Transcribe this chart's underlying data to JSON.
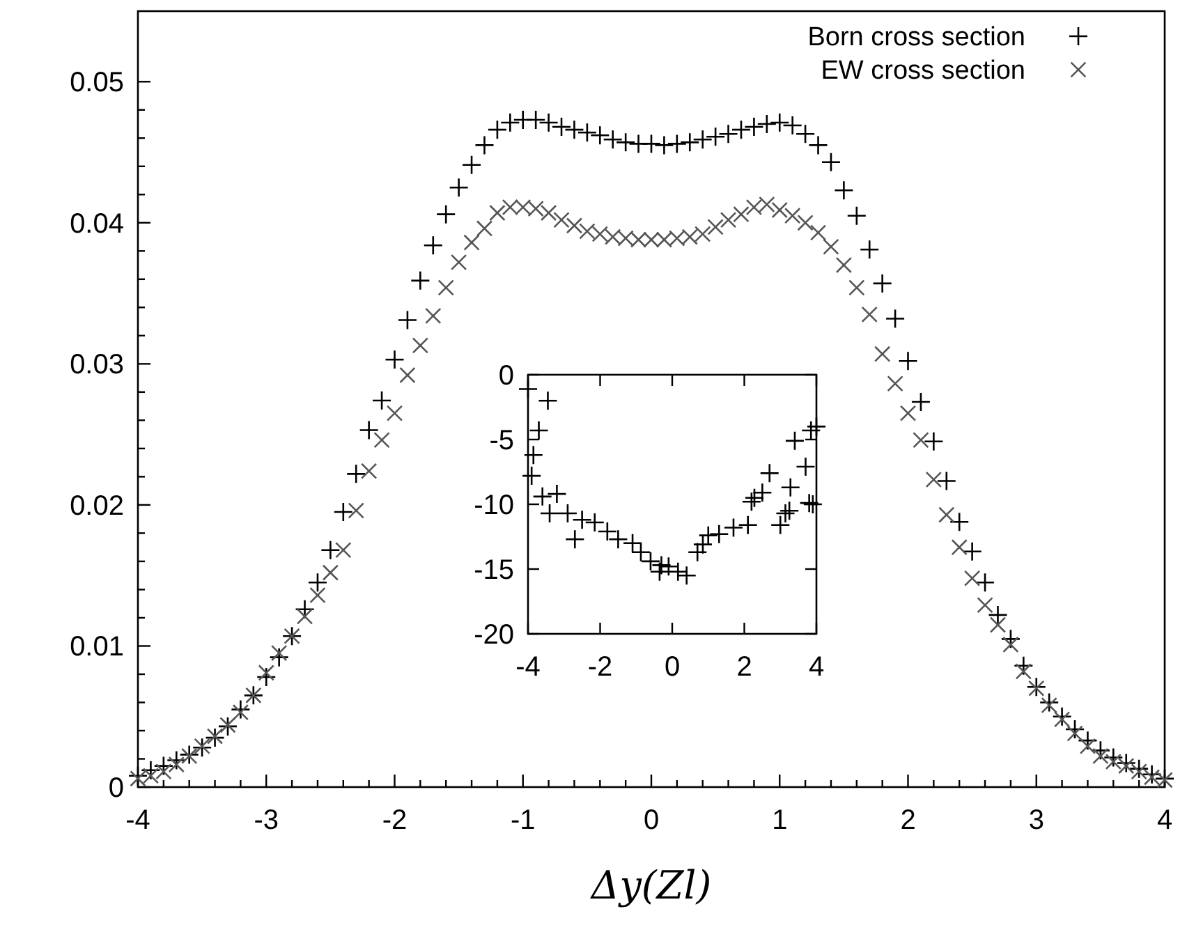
{
  "chart_data": [
    {
      "type": "scatter",
      "xlabel": "Δy(Zl)",
      "legend": "top right",
      "xlim": [
        -4,
        4
      ],
      "ylim": [
        0,
        0.055
      ],
      "xticks": [
        -4,
        {
          "value": -3.8,
          "label": null
        },
        {
          "value": -3.6,
          "label": null
        },
        {
          "value": -3.4,
          "label": null
        },
        {
          "value": -3.2,
          "label": null
        },
        -3,
        {
          "value": -2.8,
          "label": null
        },
        {
          "value": -2.6,
          "label": null
        },
        {
          "value": -2.4,
          "label": null
        },
        {
          "value": -2.2,
          "label": null
        },
        -2,
        {
          "value": -1.8,
          "label": null
        },
        {
          "value": -1.6,
          "label": null
        },
        {
          "value": -1.4,
          "label": null
        },
        {
          "value": -1.2,
          "label": null
        },
        -1,
        {
          "value": -0.8,
          "label": null
        },
        {
          "value": -0.6,
          "label": null
        },
        {
          "value": -0.4,
          "label": null
        },
        {
          "value": -0.2,
          "label": null
        },
        0,
        {
          "value": 0.2,
          "label": null
        },
        {
          "value": 0.4,
          "label": null
        },
        {
          "value": 0.6,
          "label": null
        },
        {
          "value": 0.8,
          "label": null
        },
        1,
        {
          "value": 1.2,
          "label": null
        },
        {
          "value": 1.4,
          "label": null
        },
        {
          "value": 1.6,
          "label": null
        },
        {
          "value": 1.8,
          "label": null
        },
        2,
        {
          "value": 2.2,
          "label": null
        },
        {
          "value": 2.4,
          "label": null
        },
        {
          "value": 2.6,
          "label": null
        },
        {
          "value": 2.8,
          "label": null
        },
        3,
        {
          "value": 3.2,
          "label": null
        },
        {
          "value": 3.4,
          "label": null
        },
        {
          "value": 3.6,
          "label": null
        },
        {
          "value": 3.8,
          "label": null
        },
        4
      ],
      "yticks": [
        0,
        {
          "value": 0.002,
          "label": null
        },
        {
          "value": 0.004,
          "label": null
        },
        {
          "value": 0.006,
          "label": null
        },
        {
          "value": 0.008,
          "label": null
        },
        0.01,
        {
          "value": 0.012,
          "label": null
        },
        {
          "value": 0.014,
          "label": null
        },
        {
          "value": 0.016,
          "label": null
        },
        {
          "value": 0.018,
          "label": null
        },
        0.02,
        {
          "value": 0.022,
          "label": null
        },
        {
          "value": 0.024,
          "label": null
        },
        {
          "value": 0.026,
          "label": null
        },
        {
          "value": 0.028,
          "label": null
        },
        0.03,
        {
          "value": 0.032,
          "label": null
        },
        {
          "value": 0.034,
          "label": null
        },
        {
          "value": 0.036,
          "label": null
        },
        {
          "value": 0.038,
          "label": null
        },
        0.04,
        {
          "value": 0.042,
          "label": null
        },
        {
          "value": 0.044,
          "label": null
        },
        {
          "value": 0.046,
          "label": null
        },
        {
          "value": 0.048,
          "label": null
        },
        0.05
      ],
      "x": [
        -4,
        -3.9,
        -3.8,
        -3.7,
        -3.6,
        -3.5,
        -3.4,
        -3.3,
        -3.2,
        -3.1,
        -3,
        -2.9,
        -2.8,
        -2.7,
        -2.6,
        -2.5,
        -2.4,
        -2.3,
        -2.2,
        -2.1,
        -2,
        -1.9,
        -1.8,
        -1.7,
        -1.6,
        -1.5,
        -1.4,
        -1.3,
        -1.2,
        -1.1,
        -1,
        -0.9,
        -0.8,
        -0.7,
        -0.6,
        -0.5,
        -0.4,
        -0.3,
        -0.2,
        -0.1,
        0,
        0.1,
        0.2,
        0.3,
        0.4,
        0.5,
        0.6,
        0.7,
        0.8,
        0.9,
        1,
        1.1,
        1.2,
        1.3,
        1.4,
        1.5,
        1.6,
        1.7,
        1.8,
        1.9,
        2,
        2.1,
        2.2,
        2.3,
        2.4,
        2.5,
        2.6,
        2.7,
        2.8,
        2.9,
        3,
        3.1,
        3.2,
        3.3,
        3.4,
        3.5,
        3.6,
        3.7,
        3.8,
        3.9,
        4
      ],
      "series": [
        {
          "name": "Born cross section",
          "color": "#000000",
          "marker": "cross",
          "values": [
            0.0008,
            0.0012,
            0.0015,
            0.0019,
            0.0023,
            0.0028,
            0.0035,
            0.0043,
            0.0055,
            0.0065,
            0.0078,
            0.0092,
            0.0107,
            0.0126,
            0.0145,
            0.0168,
            0.0195,
            0.0222,
            0.0253,
            0.0274,
            0.0303,
            0.0331,
            0.0359,
            0.0384,
            0.0406,
            0.0425,
            0.0441,
            0.0455,
            0.0466,
            0.0471,
            0.0473,
            0.0473,
            0.0471,
            0.0468,
            0.0466,
            0.0464,
            0.0462,
            0.0459,
            0.0457,
            0.0456,
            0.0456,
            0.0455,
            0.0456,
            0.0457,
            0.0459,
            0.0461,
            0.0463,
            0.0466,
            0.0468,
            0.047,
            0.0471,
            0.0469,
            0.0463,
            0.0455,
            0.0443,
            0.0423,
            0.0405,
            0.0381,
            0.0357,
            0.0332,
            0.0302,
            0.0273,
            0.0245,
            0.0217,
            0.0188,
            0.0167,
            0.0145,
            0.0122,
            0.0105,
            0.0086,
            0.0071,
            0.006,
            0.005,
            0.0041,
            0.0033,
            0.0026,
            0.0021,
            0.0017,
            0.0013,
            0.0009,
            0.0006
          ]
        },
        {
          "name": "EW cross section",
          "color": "#555555",
          "marker": "x",
          "values": [
            0.0006,
            0.0008,
            0.0011,
            0.0016,
            0.0022,
            0.0029,
            0.0036,
            0.0044,
            0.0053,
            0.0065,
            0.0081,
            0.0095,
            0.0107,
            0.0121,
            0.0136,
            0.0152,
            0.0168,
            0.0196,
            0.0224,
            0.0246,
            0.0265,
            0.0292,
            0.0313,
            0.0334,
            0.0354,
            0.0372,
            0.0386,
            0.0396,
            0.0407,
            0.0411,
            0.0411,
            0.041,
            0.0407,
            0.0402,
            0.0398,
            0.0394,
            0.0392,
            0.039,
            0.0389,
            0.0388,
            0.0388,
            0.0388,
            0.0389,
            0.039,
            0.0392,
            0.0397,
            0.0402,
            0.0406,
            0.0411,
            0.0413,
            0.0409,
            0.0405,
            0.04,
            0.0393,
            0.0383,
            0.037,
            0.0354,
            0.0335,
            0.0307,
            0.0286,
            0.0265,
            0.0246,
            0.0218,
            0.0193,
            0.017,
            0.0148,
            0.0129,
            0.0115,
            0.0101,
            0.0082,
            0.007,
            0.0058,
            0.0048,
            0.0038,
            0.0029,
            0.0022,
            0.0018,
            0.0015,
            0.0011,
            0.0007,
            0.0005
          ]
        }
      ]
    },
    {
      "type": "scatter",
      "xlim": [
        -4,
        4
      ],
      "ylim": [
        -20,
        0
      ],
      "xticks": [
        -4,
        -2,
        0,
        2,
        4
      ],
      "yticks": [
        0,
        -5,
        -10,
        -15,
        -20
      ],
      "series": [
        {
          "color": "#000000",
          "marker": "cross",
          "x": [
            -4,
            -3.9,
            -3.85,
            -3.7,
            -3.6,
            -3.45,
            -3.4,
            -3.2,
            -2.9,
            -2.7,
            -2.5,
            -2.15,
            -1.8,
            -1.5,
            -1.1,
            -0.87,
            -0.6,
            -0.35,
            -0.3,
            -0.1,
            0.16,
            0.4,
            0.7,
            0.85,
            1.0,
            1.3,
            1.7,
            2.1,
            2.2,
            2.28,
            2.5,
            2.7,
            3,
            3.14,
            3.25,
            3.28,
            3.4,
            3.7,
            3.8,
            3.85,
            3.9,
            4
          ],
          "values": [
            -1.1,
            -7.8,
            -6.2,
            -4.3,
            -9.4,
            -2,
            -10.7,
            -9.2,
            -10.7,
            -12.7,
            -11.2,
            -11.4,
            -12.1,
            -12.7,
            -13,
            -13.7,
            -14.4,
            -15.2,
            -14.7,
            -14.8,
            -15.2,
            -15.5,
            -13.7,
            -13.1,
            -12.4,
            -12.3,
            -11.8,
            -11.6,
            -9.8,
            -9.5,
            -9.1,
            -7.6,
            -11.6,
            -10.7,
            -10.5,
            -8.7,
            -5.1,
            -7.1,
            -9.9,
            -4.3,
            -10,
            -4
          ]
        }
      ]
    }
  ]
}
